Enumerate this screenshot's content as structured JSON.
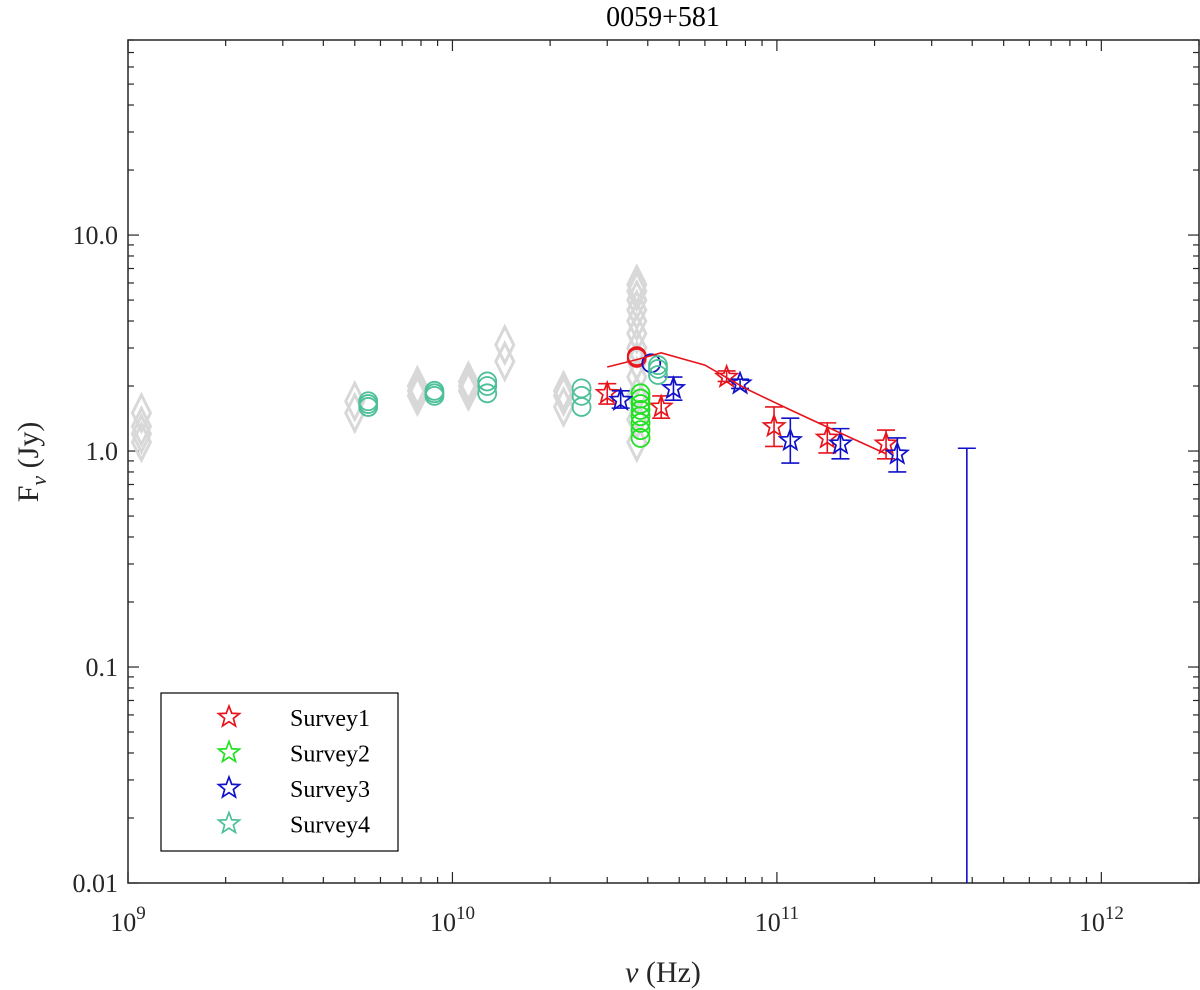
{
  "chart_data": {
    "type": "scatter",
    "title": "0059+581",
    "xlabel_symbol": "ν",
    "xlabel_unit": " (Hz)",
    "ylabel_main": "F",
    "ylabel_sub": "ν",
    "ylabel_unit": " (Jy)",
    "x_scale": "log",
    "y_scale": "log",
    "xlim": [
      1000000000,
      2000000000000
    ],
    "ylim": [
      0.01,
      80
    ],
    "x_ticks": [
      {
        "value": 1000000000,
        "base": "10",
        "exp": "9"
      },
      {
        "value": 10000000000,
        "base": "10",
        "exp": "10"
      },
      {
        "value": 100000000000,
        "base": "10",
        "exp": "11"
      },
      {
        "value": 1000000000000,
        "base": "10",
        "exp": "12"
      }
    ],
    "y_ticks": [
      {
        "value": 0.01,
        "label": "0.01"
      },
      {
        "value": 0.1,
        "label": "0.1"
      },
      {
        "value": 1,
        "label": "1.0"
      },
      {
        "value": 10,
        "label": "10.0"
      }
    ],
    "grid": false,
    "legend_position": "bottom-left",
    "legend": [
      {
        "name": "Survey1",
        "color": "#e8141c"
      },
      {
        "name": "Survey2",
        "color": "#22e022"
      },
      {
        "name": "Survey3",
        "color": "#1010c8"
      },
      {
        "name": "Survey4",
        "color": "#4dbf9a"
      }
    ],
    "background_points": {
      "color": "#d8d8d8",
      "marker": "diamond",
      "points": [
        [
          1100000000,
          1.1
        ],
        [
          1100000000,
          1.2
        ],
        [
          1100000000,
          1.3
        ],
        [
          1100000000,
          1.5
        ],
        [
          5000000000,
          1.5
        ],
        [
          5000000000,
          1.7
        ],
        [
          7800000000,
          1.8
        ],
        [
          7800000000,
          1.9
        ],
        [
          7800000000,
          2.0
        ],
        [
          11200000000,
          1.9
        ],
        [
          11200000000,
          2.0
        ],
        [
          11200000000,
          2.1
        ],
        [
          14500000000,
          2.6
        ],
        [
          14500000000,
          3.1
        ],
        [
          22000000000,
          1.6
        ],
        [
          22000000000,
          1.8
        ],
        [
          22000000000,
          1.9
        ],
        [
          37000000000,
          1.1
        ],
        [
          37000000000,
          1.4
        ],
        [
          37000000000,
          1.8
        ],
        [
          37000000000,
          2.2
        ],
        [
          37000000000,
          2.6
        ],
        [
          37000000000,
          3.0
        ],
        [
          37000000000,
          3.5
        ],
        [
          37000000000,
          4.0
        ],
        [
          37000000000,
          4.5
        ],
        [
          37000000000,
          5.0
        ],
        [
          37000000000,
          5.5
        ],
        [
          37000000000,
          5.9
        ]
      ]
    },
    "series": [
      {
        "name": "Survey1",
        "color": "#e8141c",
        "stars": [
          {
            "x": 30000000000,
            "y": 1.85,
            "lo": 1.65,
            "hi": 2.05
          },
          {
            "x": 44000000000,
            "y": 1.6,
            "lo": 1.42,
            "hi": 1.8
          },
          {
            "x": 70000000000,
            "y": 2.2,
            "lo": 2.1,
            "hi": 2.35
          },
          {
            "x": 98000000000,
            "y": 1.3,
            "lo": 1.05,
            "hi": 1.6
          },
          {
            "x": 143000000000,
            "y": 1.15,
            "lo": 0.98,
            "hi": 1.35
          },
          {
            "x": 217000000000,
            "y": 1.08,
            "lo": 0.92,
            "hi": 1.25
          }
        ],
        "circles": [
          {
            "x": 37000000000,
            "y": 2.7
          },
          {
            "x": 37000000000,
            "y": 2.75
          }
        ]
      },
      {
        "name": "Survey2",
        "color": "#22e022",
        "stars": [],
        "circles": [
          {
            "x": 38000000000,
            "y": 1.15
          },
          {
            "x": 38000000000,
            "y": 1.25
          },
          {
            "x": 38000000000,
            "y": 1.35
          },
          {
            "x": 38000000000,
            "y": 1.45
          },
          {
            "x": 38000000000,
            "y": 1.55
          },
          {
            "x": 38000000000,
            "y": 1.65
          },
          {
            "x": 38000000000,
            "y": 1.75
          },
          {
            "x": 38000000000,
            "y": 1.85
          }
        ]
      },
      {
        "name": "Survey3",
        "color": "#1010c8",
        "stars": [
          {
            "x": 33000000000,
            "y": 1.72,
            "lo": 1.58,
            "hi": 1.9
          },
          {
            "x": 48000000000,
            "y": 1.95,
            "lo": 1.72,
            "hi": 2.2
          },
          {
            "x": 77000000000,
            "y": 2.05,
            "lo": 1.95,
            "hi": 2.15
          },
          {
            "x": 110000000000,
            "y": 1.12,
            "lo": 0.88,
            "hi": 1.42
          },
          {
            "x": 157000000000,
            "y": 1.08,
            "lo": 0.92,
            "hi": 1.27
          },
          {
            "x": 235000000000,
            "y": 0.97,
            "lo": 0.8,
            "hi": 1.15
          }
        ],
        "circles": [
          {
            "x": 41000000000,
            "y": 2.55
          }
        ],
        "upper_limit": {
          "x": 385000000000,
          "top": 1.03
        }
      },
      {
        "name": "Survey4",
        "color": "#4dbf9a",
        "stars": [],
        "circles": [
          {
            "x": 5500000000,
            "y": 1.6
          },
          {
            "x": 5500000000,
            "y": 1.65
          },
          {
            "x": 5500000000,
            "y": 1.7
          },
          {
            "x": 8800000000,
            "y": 1.8
          },
          {
            "x": 8800000000,
            "y": 1.85
          },
          {
            "x": 8800000000,
            "y": 1.9
          },
          {
            "x": 12800000000,
            "y": 1.85
          },
          {
            "x": 12800000000,
            "y": 2.0
          },
          {
            "x": 12800000000,
            "y": 2.1
          },
          {
            "x": 25000000000,
            "y": 1.6
          },
          {
            "x": 25000000000,
            "y": 1.8
          },
          {
            "x": 25000000000,
            "y": 1.95
          },
          {
            "x": 43000000000,
            "y": 2.25
          },
          {
            "x": 43000000000,
            "y": 2.4
          },
          {
            "x": 43000000000,
            "y": 2.5
          }
        ]
      }
    ],
    "fit_line": {
      "color": "#e8141c",
      "points": [
        [
          30000000000,
          2.45
        ],
        [
          37000000000,
          2.65
        ],
        [
          44000000000,
          2.85
        ],
        [
          60000000000,
          2.5
        ],
        [
          80000000000,
          1.95
        ],
        [
          110000000000,
          1.55
        ],
        [
          150000000000,
          1.25
        ],
        [
          217000000000,
          0.97
        ]
      ]
    }
  }
}
